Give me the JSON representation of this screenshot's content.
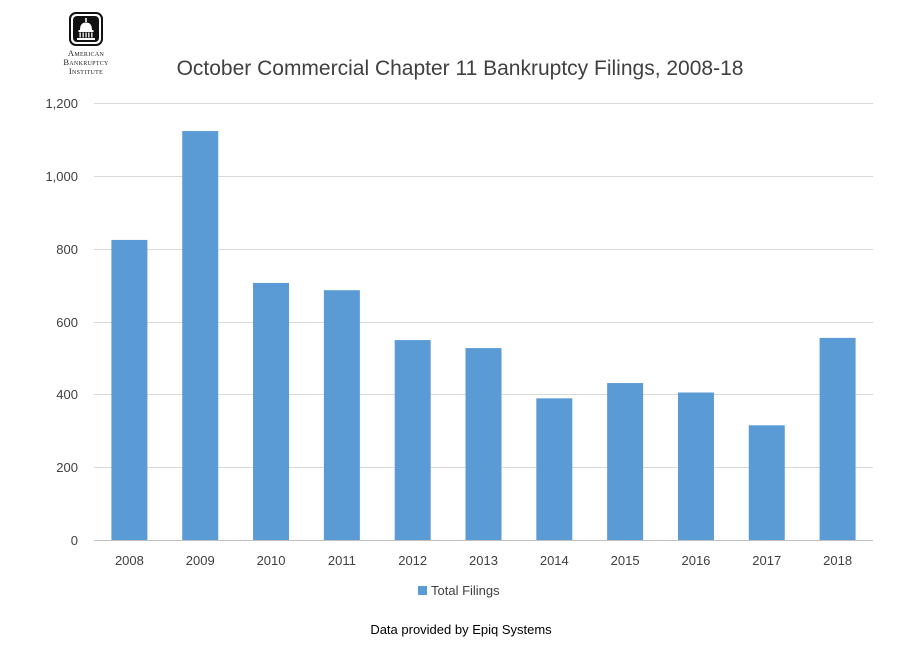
{
  "logo": {
    "icon": "capitol-dome-icon",
    "lines": [
      "American",
      "Bankruptcy",
      "Institute"
    ]
  },
  "footer_note": "Data provided by Epiq Systems",
  "colors": {
    "bar": "#5B9BD5",
    "grid": "#D9D9D9",
    "text": "#404040"
  },
  "chart_data": {
    "type": "bar",
    "title": "October Commercial Chapter 11 Bankruptcy Filings, 2008-18",
    "xlabel": "",
    "ylabel": "",
    "categories": [
      "2008",
      "2009",
      "2010",
      "2011",
      "2012",
      "2013",
      "2014",
      "2015",
      "2016",
      "2017",
      "2018"
    ],
    "series": [
      {
        "name": "Total Filings",
        "values": [
          824,
          1123,
          706,
          686,
          549,
          527,
          389,
          431,
          405,
          315,
          555
        ]
      }
    ],
    "ylim": [
      0,
      1200
    ],
    "yticks": [
      0,
      200,
      400,
      600,
      800,
      1000,
      1200
    ],
    "ytick_labels": [
      "0",
      "200",
      "400",
      "600",
      "800",
      "1,000",
      "1,200"
    ],
    "grid": true,
    "legend": "bottom"
  }
}
